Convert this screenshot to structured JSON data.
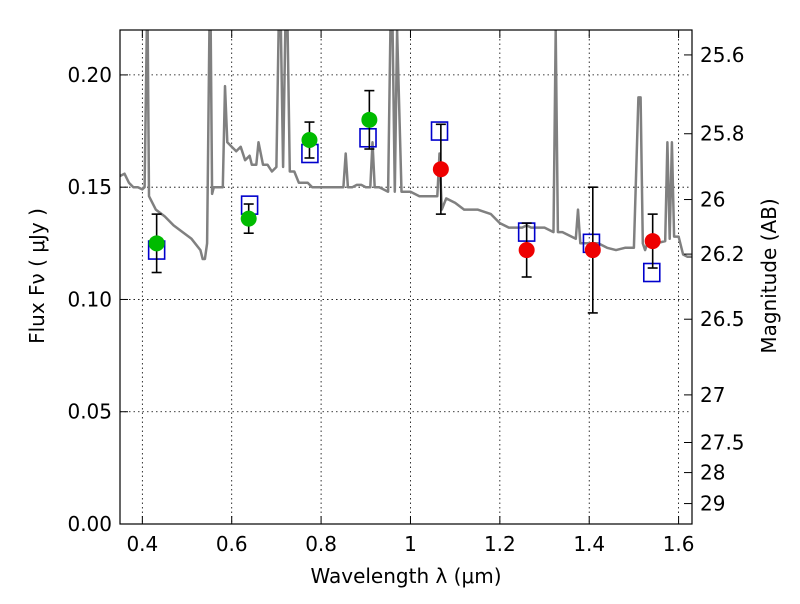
{
  "chart_data": {
    "type": "scatter",
    "xlabel": "Wavelength  λ (μm)",
    "ylabel_left": "Flux  Fν  ( μJy )",
    "ylabel_right": "Magnitude (AB)",
    "xlim": [
      0.35,
      1.63
    ],
    "ylim": [
      0.0,
      0.22
    ],
    "grid": true,
    "x_ticks": [
      0.4,
      0.6,
      0.8,
      1.0,
      1.2,
      1.4,
      1.6
    ],
    "x_tick_labels": [
      "0.4",
      "0.6",
      "0.8",
      "1",
      "1.2",
      "1.4",
      "1.6"
    ],
    "y_ticks": [
      0.0,
      0.05,
      0.1,
      0.15,
      0.2
    ],
    "y_tick_labels": [
      "0.00",
      "0.05",
      "0.10",
      "0.15",
      "0.20"
    ],
    "right_ticks": [
      {
        "label": "25.6",
        "flux": 0.2089
      },
      {
        "label": "25.8",
        "flux": 0.1738
      },
      {
        "label": "26",
        "flux": 0.1445
      },
      {
        "label": "26.2",
        "flux": 0.1202
      },
      {
        "label": "26.5",
        "flux": 0.0912
      },
      {
        "label": "27",
        "flux": 0.0575
      },
      {
        "label": "27.5",
        "flux": 0.0363
      },
      {
        "label": "28",
        "flux": 0.0229
      },
      {
        "label": "29",
        "flux": 0.0091
      }
    ],
    "series": [
      {
        "name": "",
        "kind": "template-spectrum",
        "color": "#808080",
        "x": [
          0.35,
          0.36,
          0.37,
          0.38,
          0.39,
          0.4,
          0.405,
          0.41,
          0.412,
          0.415,
          0.43,
          0.45,
          0.47,
          0.49,
          0.51,
          0.53,
          0.535,
          0.54,
          0.545,
          0.55,
          0.553,
          0.556,
          0.56,
          0.58,
          0.585,
          0.59,
          0.6,
          0.61,
          0.62,
          0.63,
          0.64,
          0.645,
          0.65,
          0.655,
          0.66,
          0.67,
          0.68,
          0.69,
          0.7,
          0.705,
          0.71,
          0.715,
          0.72,
          0.725,
          0.73,
          0.735,
          0.74,
          0.75,
          0.76,
          0.77,
          0.78,
          0.79,
          0.8,
          0.82,
          0.84,
          0.85,
          0.855,
          0.86,
          0.87,
          0.88,
          0.89,
          0.9,
          0.91,
          0.915,
          0.92,
          0.925,
          0.93,
          0.95,
          0.955,
          0.96,
          0.965,
          0.97,
          0.98,
          1.0,
          1.02,
          1.04,
          1.05,
          1.06,
          1.065,
          1.07,
          1.08,
          1.1,
          1.12,
          1.15,
          1.18,
          1.2,
          1.22,
          1.25,
          1.26,
          1.27,
          1.3,
          1.32,
          1.325,
          1.33,
          1.34,
          1.37,
          1.375,
          1.38,
          1.4,
          1.42,
          1.44,
          1.46,
          1.48,
          1.5,
          1.51,
          1.515,
          1.52,
          1.525,
          1.53,
          1.55,
          1.57,
          1.575,
          1.58,
          1.585,
          1.59,
          1.6,
          1.61,
          1.62,
          1.63
        ],
        "y": [
          0.155,
          0.156,
          0.152,
          0.15,
          0.15,
          0.149,
          0.15,
          0.22,
          0.22,
          0.146,
          0.14,
          0.137,
          0.133,
          0.13,
          0.127,
          0.122,
          0.118,
          0.118,
          0.125,
          0.22,
          0.22,
          0.147,
          0.15,
          0.15,
          0.195,
          0.17,
          0.168,
          0.166,
          0.168,
          0.162,
          0.164,
          0.16,
          0.16,
          0.16,
          0.17,
          0.16,
          0.16,
          0.157,
          0.159,
          0.22,
          0.22,
          0.159,
          0.22,
          0.22,
          0.157,
          0.157,
          0.157,
          0.152,
          0.152,
          0.152,
          0.15,
          0.15,
          0.15,
          0.15,
          0.15,
          0.15,
          0.165,
          0.15,
          0.15,
          0.151,
          0.151,
          0.15,
          0.15,
          0.17,
          0.15,
          0.15,
          0.15,
          0.148,
          0.22,
          0.22,
          0.148,
          0.22,
          0.148,
          0.148,
          0.146,
          0.146,
          0.146,
          0.146,
          0.165,
          0.14,
          0.145,
          0.143,
          0.14,
          0.14,
          0.138,
          0.134,
          0.132,
          0.132,
          0.133,
          0.132,
          0.132,
          0.13,
          0.22,
          0.13,
          0.13,
          0.127,
          0.14,
          0.125,
          0.125,
          0.125,
          0.123,
          0.122,
          0.123,
          0.123,
          0.19,
          0.19,
          0.125,
          0.122,
          0.125,
          0.125,
          0.126,
          0.17,
          0.127,
          0.17,
          0.128,
          0.128,
          0.12,
          0.119,
          0.119
        ]
      },
      {
        "name": "",
        "kind": "model-boxes",
        "color": "#0000cc",
        "x": [
          0.432,
          0.64,
          0.775,
          0.905,
          1.065,
          1.26,
          1.405,
          1.54
        ],
        "y": [
          0.122,
          0.142,
          0.165,
          0.172,
          0.175,
          0.13,
          0.125,
          0.112
        ]
      },
      {
        "name": "",
        "kind": "observed-green",
        "color": "#00bb00",
        "x": [
          0.432,
          0.638,
          0.774,
          0.908
        ],
        "y": [
          0.125,
          0.136,
          0.171,
          0.18
        ],
        "yerr": [
          0.013,
          0.0065,
          0.008,
          0.013
        ]
      },
      {
        "name": "",
        "kind": "observed-red",
        "color": "#ee0000",
        "x": [
          1.068,
          1.26,
          1.408,
          1.542
        ],
        "y": [
          0.158,
          0.122,
          0.122,
          0.126
        ],
        "yerr": [
          0.02,
          0.012,
          0.028,
          0.012
        ]
      }
    ]
  }
}
